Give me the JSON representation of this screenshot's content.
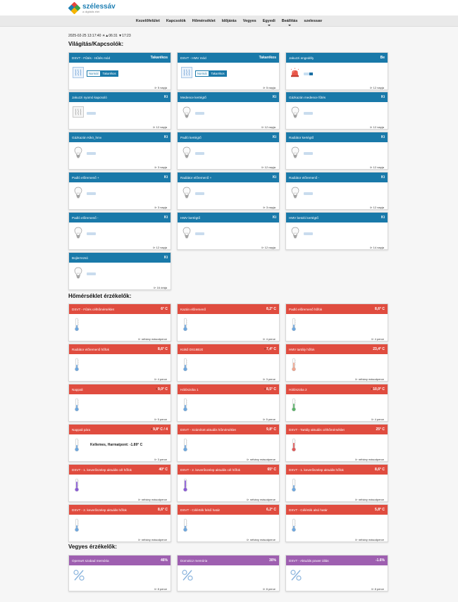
{
  "header": {
    "logo_name": "szélessáv",
    "logo_tagline": "a digitális élet",
    "colors": {
      "logo_1": "#e8453c",
      "logo_2": "#1e7fb3",
      "logo_3": "#3aa14a",
      "logo_4": "#f4b400"
    }
  },
  "nav": {
    "items": [
      {
        "label": "Kezelőfelület",
        "dropdown": false
      },
      {
        "label": "Kapcsolók",
        "dropdown": false
      },
      {
        "label": "Hőmérséklet",
        "dropdown": false
      },
      {
        "label": "Időjárás",
        "dropdown": false
      },
      {
        "label": "Vegyes",
        "dropdown": false
      },
      {
        "label": "Egyedi",
        "dropdown": true
      },
      {
        "label": "Beállítás",
        "dropdown": true
      },
      {
        "label": "szelessav",
        "dropdown": false
      }
    ]
  },
  "status_line": "2025-02-25 13:17:40 ☀▲06:31 ▼17:23",
  "sections": {
    "switches_title": "Világítás/Kapcsolók:",
    "temps_title": "Hőmérséklet érzékelők:",
    "misc_title": "Vegyes érzékelők:"
  },
  "colors": {
    "switch_header": "#1979a9",
    "temp_header": "#e04c3f",
    "misc_header": "#9e5fb0"
  },
  "switches": [
    {
      "title": "DSVT - Fűtés - Hűtés mód",
      "value": "Takarékos",
      "icon": "heating-icon",
      "mode_buttons": [
        "Normál",
        "Takarékos"
      ],
      "active_button": 1,
      "footer": "⊳ 5 napja"
    },
    {
      "title": "DSVT - HMV mód",
      "value": "Takarékos",
      "icon": "heating-icon",
      "mode_buttons": [
        "Normál",
        "Takarékos"
      ],
      "active_button": 1,
      "footer": "⊳ 5 napja"
    },
    {
      "title": "Jakuzzi engedély",
      "value": "Be",
      "icon": "siren-icon",
      "toggle_on": true,
      "footer": "⊳ 12 napja"
    },
    {
      "title": "Jakuzzi nyomó kapcsoló",
      "value": "Ki",
      "icon": "heating-off-icon",
      "toggle_on": false,
      "footer": "⊳ 12 napja"
    },
    {
      "title": "Medence kertégtő",
      "value": "Ki",
      "icon": "bulb-icon",
      "toggle_on": false,
      "footer": "⊳ 12 napja"
    },
    {
      "title": "Gázkazán medence fűtés",
      "value": "Ki",
      "icon": "bulb-icon",
      "toggle_on": false,
      "footer": "⊳ 12 napja"
    },
    {
      "title": "Gázkazán Kikö_hmv",
      "value": "Ki",
      "icon": "bulb-icon",
      "toggle_on": false,
      "footer": "⊳ 3 napja"
    },
    {
      "title": "Padló kertégtő",
      "value": "Ki",
      "icon": "bulb-icon",
      "toggle_on": false,
      "footer": "⊳ 12 napja"
    },
    {
      "title": "Radiátor kertégtő",
      "value": "Ki",
      "icon": "bulb-icon",
      "toggle_on": false,
      "footer": "⊳ 12 napja"
    },
    {
      "title": "Padló előremenő +",
      "value": "Ki",
      "icon": "bulb-icon",
      "toggle_on": false,
      "footer": "⊳ 3 napja"
    },
    {
      "title": "Radiátor előremenő +",
      "value": "Ki",
      "icon": "bulb-icon",
      "toggle_on": false,
      "footer": "⊳ 3 napja"
    },
    {
      "title": "Radiátor előremenő -",
      "value": "Ki",
      "icon": "bulb-icon",
      "toggle_on": false,
      "footer": "⊳ 12 napja"
    },
    {
      "title": "Padló előremenő -",
      "value": "Ki",
      "icon": "bulb-icon",
      "toggle_on": false,
      "footer": "⊳ 12 napja"
    },
    {
      "title": "HMV kertégtő",
      "value": "Ki",
      "icon": "bulb-icon",
      "toggle_on": false,
      "footer": "⊳ 12 napja"
    },
    {
      "title": "HMV betoló kertégtő",
      "value": "Ki",
      "icon": "bulb-icon",
      "toggle_on": false,
      "footer": "⊳ 14 napja"
    },
    {
      "title": "Bojlerrezsó",
      "value": "Ki",
      "icon": "bulb-icon",
      "toggle_on": false,
      "footer": "⊳ 16 órája"
    }
  ],
  "temps": [
    {
      "title": "DSVT - Fűtés célhőmérséklet",
      "value": "6° C",
      "warn": false,
      "thermo_color": "#6ea8e0",
      "thermo_level": 0.25,
      "footer": "⊳ néhány másodperce"
    },
    {
      "title": "Kazán előremenő",
      "value": "8,2° C",
      "warn": false,
      "thermo_color": "#6ea8e0",
      "thermo_level": 0.3,
      "footer": "⊳ 4 perce"
    },
    {
      "title": "Padló előremenő hőfok",
      "value": "8,6° C",
      "warn": false,
      "thermo_color": "#6ea8e0",
      "thermo_level": 0.3,
      "footer": "⊳ 4 perce"
    },
    {
      "title": "Radiátor előremenő hőfok",
      "value": "8,6° C",
      "warn": false,
      "thermo_color": "#6ea8e0",
      "thermo_level": 0.3,
      "footer": "⊳ 4 perce"
    },
    {
      "title": "Külső DS18B20",
      "value": "7,4° C",
      "warn": true,
      "thermo_color": "#6ea8e0",
      "thermo_level": 0.3,
      "footer": "⊳ 3 perce"
    },
    {
      "title": "HMV tartály hőfok",
      "value": "23,4° C",
      "warn": false,
      "thermo_color": "#f0a58f",
      "thermo_level": 0.55,
      "footer": "⊳ néhány másodperce"
    },
    {
      "title": "Nappali",
      "value": "9,0° C",
      "warn": true,
      "thermo_color": "#6ea8e0",
      "thermo_level": 0.3,
      "footer": "⊳ 5 perce"
    },
    {
      "title": "Hálószoba 1",
      "value": "8,5° C",
      "warn": true,
      "thermo_color": "#6ea8e0",
      "thermo_level": 0.3,
      "footer": "⊳ 5 perce"
    },
    {
      "title": "Hálószoba 2",
      "value": "10,0° C",
      "warn": true,
      "thermo_color": "#5bb36a",
      "thermo_level": 0.45,
      "footer": "⊳ 4 perce"
    },
    {
      "title": "Nappali pára",
      "value": "9,8° C / 4",
      "warn": true,
      "thermo_color": "#6ea8e0",
      "thermo_level": 0.3,
      "comfort_text": "Kellemes, Harmatpont: -1.89° C",
      "footer": "⊳ 3 perce"
    },
    {
      "title": "DSVT - Számított aktuális hőmérséklet",
      "value": "9,8° C",
      "warn": false,
      "thermo_color": "#6ea8e0",
      "thermo_level": 0.3,
      "footer": "⊳ néhány másodperce"
    },
    {
      "title": "DSVT - Tartály aktuális célhőmérséklet",
      "value": "25° C",
      "warn": false,
      "thermo_color": "#e05a5a",
      "thermo_level": 0.55,
      "footer": "⊳ néhány másodperce"
    },
    {
      "title": "DSVT - 1. keverőszelep aktuális cél hőfok",
      "value": "40° C",
      "warn": false,
      "thermo_color": "#8a5cd6",
      "thermo_level": 0.7,
      "footer": "⊳ néhány másodperce"
    },
    {
      "title": "DSVT - 2. keverőszelep aktuális cél hőfok",
      "value": "65° C",
      "warn": false,
      "thermo_color": "#8a5cd6",
      "thermo_level": 0.85,
      "footer": "⊳ néhány másodperce"
    },
    {
      "title": "DSVT - 1. keverőszelep aktuális hőfok",
      "value": "8,6° C",
      "warn": false,
      "thermo_color": "#6ea8e0",
      "thermo_level": 0.3,
      "footer": "⊳ néhány másodperce"
    },
    {
      "title": "DSVT - 2. keverőszelep aktuális hőfok",
      "value": "8,6° C",
      "warn": false,
      "thermo_color": "#6ea8e0",
      "thermo_level": 0.3,
      "footer": "⊳ néhány másodperce"
    },
    {
      "title": "DSVT - Célérték felső határ",
      "value": "6,2° C",
      "warn": false,
      "thermo_color": "#6ea8e0",
      "thermo_level": 0.25,
      "footer": "⊳ néhány másodperce"
    },
    {
      "title": "DSVT - Célérték alsó határ",
      "value": "5,8° C",
      "warn": false,
      "thermo_color": "#6ea8e0",
      "thermo_level": 0.25,
      "footer": "⊳ néhány másodperce"
    }
  ],
  "misc": [
    {
      "title": "Openwrt szabad memória",
      "value": "46%",
      "icon": "percent-icon",
      "footer": "⊳ 8 perce"
    },
    {
      "title": "Domoticz memória",
      "value": "30%",
      "icon": "percent-icon",
      "footer": "⊳ 8 perce"
    },
    {
      "title": "DSVT - Aktuális power állás",
      "value": "-1.6%",
      "icon": "percent-icon",
      "footer": "⊳ 8 perce"
    }
  ]
}
